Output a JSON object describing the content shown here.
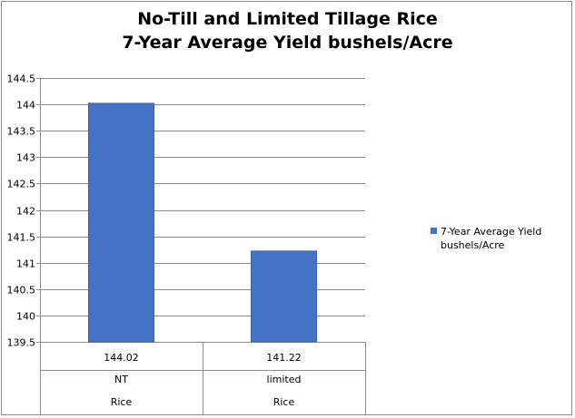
{
  "chart_data": {
    "type": "bar",
    "title_lines": [
      "No-Till and Limited Tillage Rice",
      "7-Year Average Yield bushels/Acre"
    ],
    "categories": [
      {
        "value_label": "144.02",
        "label": "NT",
        "group": "Rice"
      },
      {
        "value_label": "141.22",
        "label": "limited",
        "group": "Rice"
      }
    ],
    "series": [
      {
        "name": "7-Year Average Yield bushels/Acre",
        "values": [
          144.02,
          141.22
        ],
        "color": "#4472C4"
      }
    ],
    "ylim": [
      139.5,
      144.5
    ],
    "yticks": [
      "139.5",
      "140",
      "140.5",
      "141",
      "141.5",
      "142",
      "142.5",
      "143",
      "143.5",
      "144",
      "144.5"
    ],
    "grid": true,
    "legend_position": "right"
  }
}
